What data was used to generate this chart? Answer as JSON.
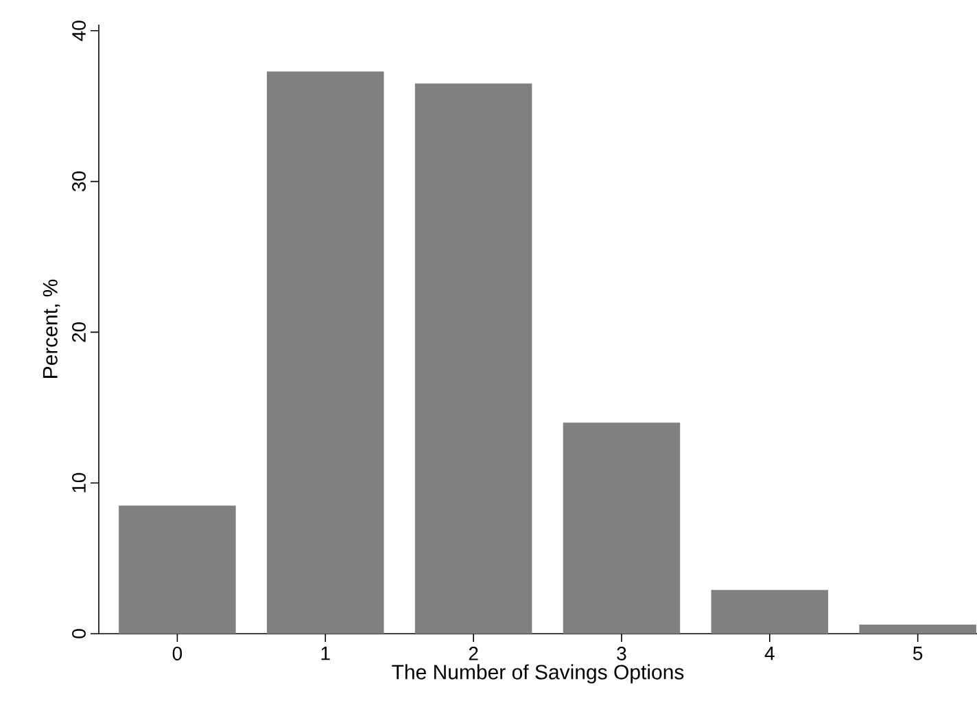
{
  "chart_data": {
    "type": "bar",
    "xlabel": "The Number of Savings Options",
    "ylabel": "Percent, %",
    "categories": [
      "0",
      "1",
      "2",
      "3",
      "4",
      "5"
    ],
    "values": [
      8.5,
      37.3,
      36.5,
      14.0,
      2.9,
      0.6
    ],
    "color": "#808080",
    "ylim": [
      0,
      40.4
    ],
    "yticks": [
      0,
      10,
      20,
      30,
      40
    ],
    "grid": false
  }
}
